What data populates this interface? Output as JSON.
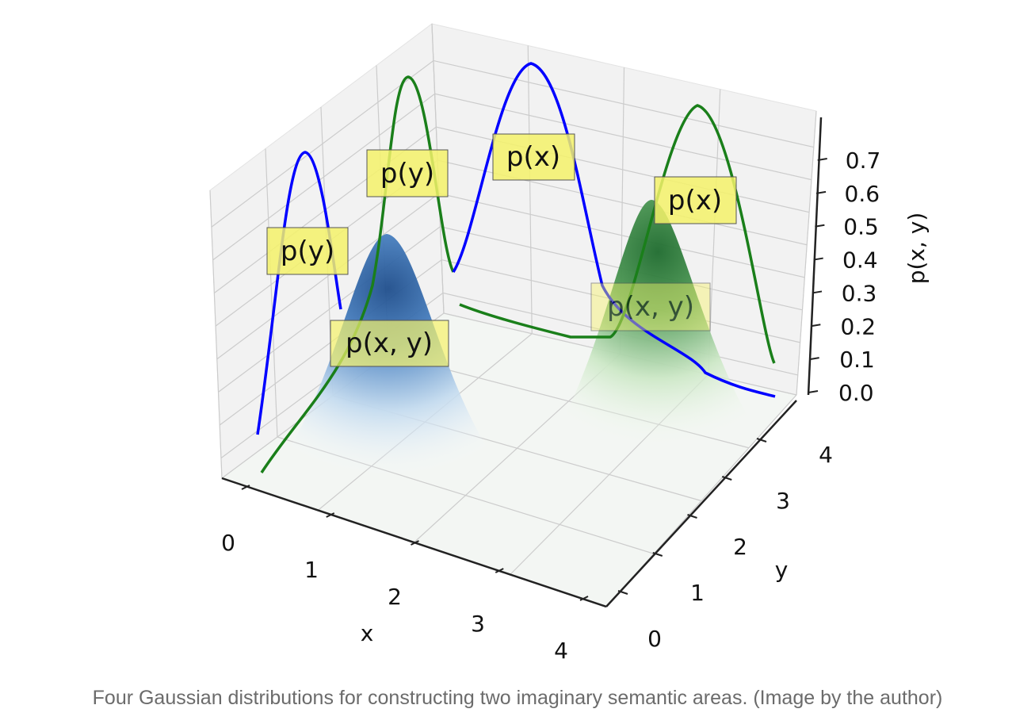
{
  "figure": {
    "caption": "Four Gaussian distributions for constructing two imaginary semantic areas. (Image by the author)"
  },
  "chart_data": {
    "type": "surface3d",
    "xlabel": "x",
    "ylabel": "y",
    "zlabel": "p(x, y)",
    "xlim": [
      0,
      4
    ],
    "ylim": [
      0,
      4
    ],
    "zlim": [
      0,
      0.75
    ],
    "x_ticks": [
      "0",
      "1",
      "2",
      "3",
      "4"
    ],
    "y_ticks": [
      "0",
      "1",
      "2",
      "3",
      "4"
    ],
    "z_ticks": [
      "0.0",
      "0.1",
      "0.2",
      "0.3",
      "0.4",
      "0.5",
      "0.6",
      "0.7"
    ],
    "grid": true,
    "surfaces": [
      {
        "label": "p(x, y)",
        "colormap": "blues",
        "peak_color": "#1f4e8c",
        "center": [
          1.5,
          2.5
        ],
        "peak": 0.6
      },
      {
        "label": "p(x, y)",
        "colormap": "greens",
        "peak_color": "#1e6b2e",
        "center": [
          3.0,
          1.5
        ],
        "peak": 0.7
      }
    ],
    "marginals": [
      {
        "label": "p(y)",
        "color": "#0000ff",
        "wall": "x=0",
        "values_axis": "y",
        "peak_at": 2.5,
        "peak": 0.72
      },
      {
        "label": "p(y)",
        "color": "#1a7f1a",
        "wall": "x=0",
        "values_axis": "y",
        "peak_at": 1.5,
        "peak": 0.72
      },
      {
        "label": "p(x)",
        "color": "#0000ff",
        "wall": "y=4",
        "values_axis": "x",
        "peak_at": 1.5,
        "peak": 0.72
      },
      {
        "label": "p(x)",
        "color": "#1a7f1a",
        "wall": "y=4",
        "values_axis": "x",
        "peak_at": 3.0,
        "peak": 0.72
      }
    ],
    "annotations": [
      "p(y)",
      "p(y)",
      "p(x)",
      "p(x)",
      "p(x, y)",
      "p(x, y)"
    ],
    "colors": {
      "annotation_box": "#f5f26a",
      "box_border": "#555555",
      "grid": "#cccccc",
      "pane": "#f2f2f2"
    }
  }
}
